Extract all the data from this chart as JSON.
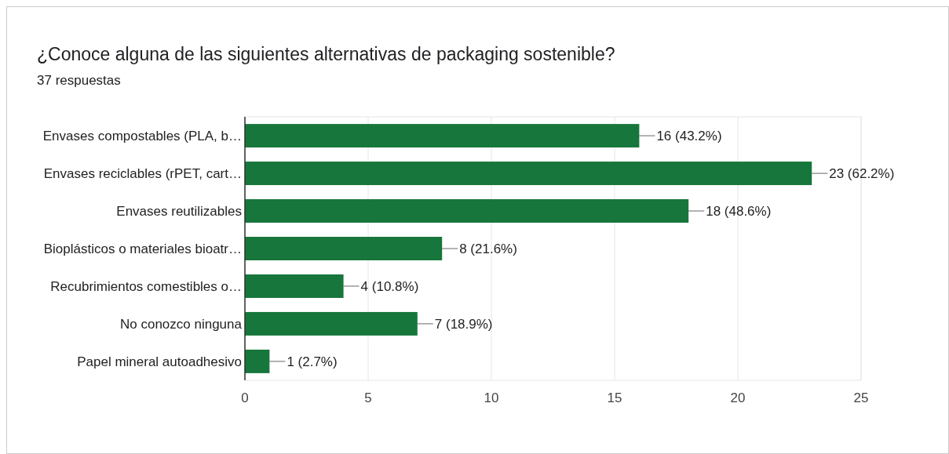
{
  "chart_data": {
    "type": "bar",
    "orientation": "horizontal",
    "title": "¿Conoce alguna de las siguientes alternativas de packaging sostenible?",
    "subtitle": "37 respuestas",
    "categories": [
      "Envases compostables (PLA, b…",
      "Envases reciclables (rPET, cart…",
      "Envases reutilizables",
      "Bioplásticos o materiales bioatr…",
      "Recubrimientos comestibles o…",
      "No conozco ninguna",
      "Papel mineral autoadhesivo"
    ],
    "values": [
      16,
      23,
      18,
      8,
      4,
      7,
      1
    ],
    "value_labels": [
      "16 (43.2%)",
      "23 (62.2%)",
      "18 (48.6%)",
      "8 (21.6%)",
      "4 (10.8%)",
      "7 (18.9%)",
      "1 (2.7%)"
    ],
    "color": "#17763b",
    "xlim": [
      0,
      25
    ],
    "xticks": [
      0,
      5,
      10,
      15,
      20,
      25
    ],
    "grid": "x"
  }
}
